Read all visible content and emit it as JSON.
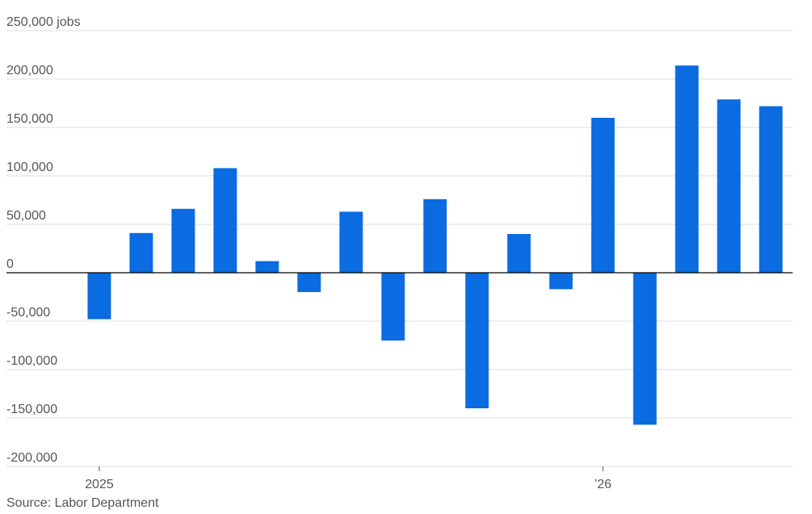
{
  "chart_data": {
    "type": "bar",
    "y_unit": "jobs",
    "ylim": [
      -200000,
      250000
    ],
    "y_ticks": [
      {
        "value": 250000,
        "label": "250,000"
      },
      {
        "value": 200000,
        "label": "200,000"
      },
      {
        "value": 150000,
        "label": "150,000"
      },
      {
        "value": 100000,
        "label": "100,000"
      },
      {
        "value": 50000,
        "label": "50,000"
      },
      {
        "value": 0,
        "label": "0"
      },
      {
        "value": -50000,
        "label": "-50,000"
      },
      {
        "value": -100000,
        "label": "-100,000"
      },
      {
        "value": -150000,
        "label": "-150,000"
      },
      {
        "value": -200000,
        "label": "-200,000"
      }
    ],
    "x_ticks": [
      {
        "index": 0,
        "label": "2025"
      },
      {
        "index": 12,
        "label": "’26"
      }
    ],
    "values": [
      -48000,
      41000,
      66000,
      108000,
      12000,
      -20000,
      63000,
      -70000,
      76000,
      -140000,
      40000,
      -17000,
      160000,
      -157000,
      214000,
      179000,
      172000
    ],
    "grid": true,
    "bar_color": "#0B6BE0",
    "source": "Source: Labor Department"
  }
}
